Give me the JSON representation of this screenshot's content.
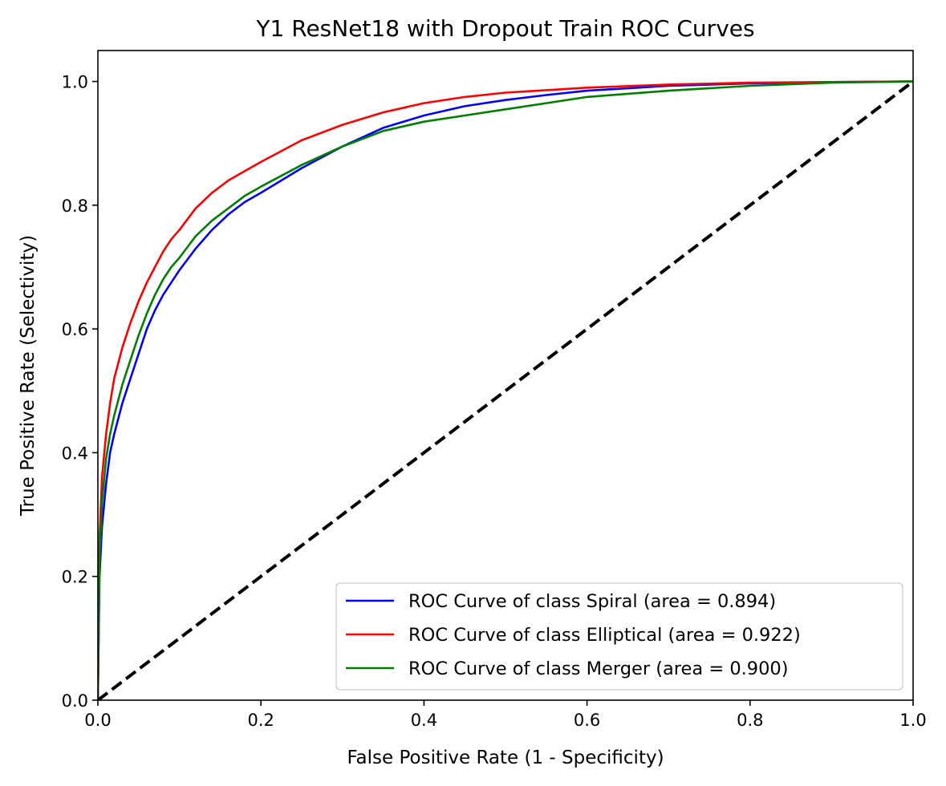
{
  "chart_data": {
    "type": "line",
    "title": "Y1 ResNet18 with Dropout Train ROC Curves",
    "xlabel": "False Positive Rate (1 - Specificity)",
    "ylabel": "True Positive Rate (Selectivity)",
    "xlim": [
      0.0,
      1.0
    ],
    "ylim": [
      0.0,
      1.05
    ],
    "xticks": [
      "0.0",
      "0.2",
      "0.4",
      "0.6",
      "0.8",
      "1.0"
    ],
    "yticks": [
      "0.0",
      "0.2",
      "0.4",
      "0.6",
      "0.8",
      "1.0"
    ],
    "grid": false,
    "legend_position": "lower-right",
    "series": [
      {
        "name": "ROC Curve of class Spiral (area = 0.894)",
        "color": "#0000ff",
        "x": [
          0.0,
          0.002,
          0.005,
          0.01,
          0.015,
          0.02,
          0.03,
          0.04,
          0.05,
          0.06,
          0.07,
          0.08,
          0.09,
          0.1,
          0.12,
          0.14,
          0.16,
          0.18,
          0.2,
          0.25,
          0.3,
          0.35,
          0.4,
          0.45,
          0.5,
          0.55,
          0.6,
          0.7,
          0.8,
          0.9,
          1.0
        ],
        "y": [
          0.0,
          0.2,
          0.28,
          0.35,
          0.4,
          0.43,
          0.48,
          0.52,
          0.56,
          0.6,
          0.63,
          0.655,
          0.675,
          0.695,
          0.73,
          0.76,
          0.785,
          0.805,
          0.82,
          0.86,
          0.895,
          0.925,
          0.945,
          0.96,
          0.97,
          0.978,
          0.985,
          0.993,
          0.997,
          0.999,
          1.0
        ]
      },
      {
        "name": "ROC Curve of class Elliptical (area = 0.922)",
        "color": "#ff0000",
        "x": [
          0.0,
          0.002,
          0.005,
          0.01,
          0.015,
          0.02,
          0.03,
          0.04,
          0.05,
          0.06,
          0.07,
          0.08,
          0.09,
          0.1,
          0.12,
          0.14,
          0.16,
          0.18,
          0.2,
          0.25,
          0.3,
          0.35,
          0.4,
          0.45,
          0.5,
          0.55,
          0.6,
          0.7,
          0.8,
          0.9,
          1.0
        ],
        "y": [
          0.0,
          0.26,
          0.36,
          0.43,
          0.48,
          0.52,
          0.57,
          0.61,
          0.645,
          0.675,
          0.7,
          0.725,
          0.745,
          0.76,
          0.795,
          0.82,
          0.84,
          0.855,
          0.87,
          0.905,
          0.93,
          0.95,
          0.965,
          0.975,
          0.982,
          0.986,
          0.99,
          0.995,
          0.998,
          0.999,
          1.0
        ]
      },
      {
        "name": "ROC Curve of class Merger (area = 0.900)",
        "color": "#008000",
        "x": [
          0.0,
          0.002,
          0.005,
          0.01,
          0.015,
          0.02,
          0.03,
          0.04,
          0.05,
          0.06,
          0.07,
          0.08,
          0.09,
          0.1,
          0.12,
          0.14,
          0.16,
          0.18,
          0.2,
          0.25,
          0.3,
          0.35,
          0.4,
          0.45,
          0.5,
          0.55,
          0.6,
          0.7,
          0.8,
          0.9,
          1.0
        ],
        "y": [
          0.0,
          0.23,
          0.32,
          0.39,
          0.43,
          0.46,
          0.51,
          0.55,
          0.59,
          0.625,
          0.655,
          0.68,
          0.7,
          0.715,
          0.75,
          0.775,
          0.795,
          0.815,
          0.83,
          0.865,
          0.895,
          0.92,
          0.935,
          0.945,
          0.955,
          0.965,
          0.975,
          0.985,
          0.993,
          0.998,
          1.0
        ]
      },
      {
        "color": "#000000",
        "dashed": true,
        "x": [
          0.0,
          1.0
        ],
        "y": [
          0.0,
          1.0
        ]
      }
    ]
  }
}
